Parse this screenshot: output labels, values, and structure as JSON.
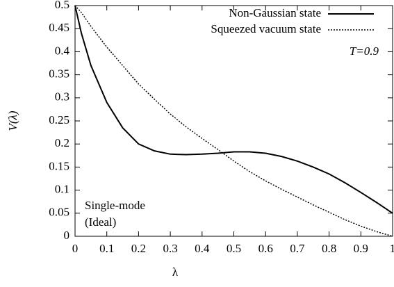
{
  "chart_data": {
    "type": "line",
    "xlabel": "λ",
    "ylabel": "V(λ)",
    "x": [
      0,
      0.02,
      0.05,
      0.1,
      0.15,
      0.2,
      0.25,
      0.3,
      0.35,
      0.4,
      0.45,
      0.5,
      0.55,
      0.6,
      0.65,
      0.7,
      0.75,
      0.8,
      0.85,
      0.9,
      0.95,
      1
    ],
    "series": [
      {
        "name": "Non-Gaussian state",
        "color": "#000000",
        "style": "solid",
        "values": [
          0.5,
          0.44,
          0.37,
          0.29,
          0.235,
          0.2,
          0.185,
          0.178,
          0.177,
          0.178,
          0.18,
          0.183,
          0.183,
          0.18,
          0.173,
          0.163,
          0.15,
          0.135,
          0.116,
          0.095,
          0.073,
          0.05
        ]
      },
      {
        "name": "Squeezed vacuum state",
        "color": "#000000",
        "style": "dotted",
        "values": [
          0.5,
          0.485,
          0.455,
          0.41,
          0.37,
          0.33,
          0.297,
          0.265,
          0.237,
          0.212,
          0.188,
          0.163,
          0.14,
          0.12,
          0.102,
          0.085,
          0.068,
          0.052,
          0.036,
          0.022,
          0.01,
          0
        ]
      }
    ],
    "annotations": [
      "T=0.9",
      "Single-mode",
      "(Ideal)"
    ],
    "xlim": [
      0,
      1
    ],
    "xticks": [
      0,
      0.1,
      0.2,
      0.3,
      0.4,
      0.5,
      0.6,
      0.7,
      0.8,
      0.9,
      1
    ],
    "ylim": [
      0,
      0.5
    ],
    "yticks": [
      0,
      0.05,
      0.1,
      0.15,
      0.2,
      0.25,
      0.3,
      0.35,
      0.4,
      0.45,
      0.5
    ],
    "grid": false,
    "legend": "top-right"
  }
}
